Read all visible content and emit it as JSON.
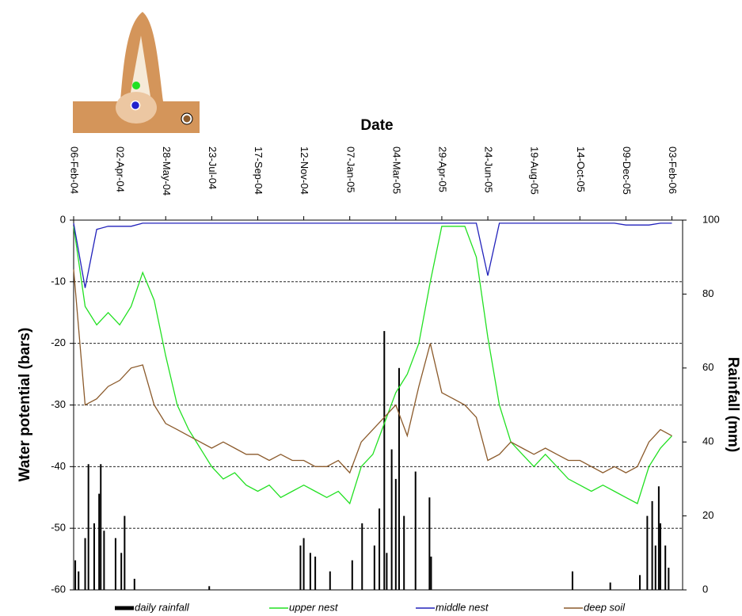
{
  "chart_data": {
    "type": "line",
    "x_title": "Date",
    "y_title": "Water potential (bars)",
    "y2_title": "Rainfall (mm)",
    "xlim": [
      "2004-02-06",
      "2006-02-16"
    ],
    "xticks": [
      {
        "value": "2004-02-06",
        "label": "06-Feb-04"
      },
      {
        "value": "2004-04-02",
        "label": "02-Apr-04"
      },
      {
        "value": "2004-05-28",
        "label": "28-May-04"
      },
      {
        "value": "2004-07-23",
        "label": "23-Jul-04"
      },
      {
        "value": "2004-09-17",
        "label": "17-Sep-04"
      },
      {
        "value": "2004-11-12",
        "label": "12-Nov-04"
      },
      {
        "value": "2005-01-07",
        "label": "07-Jan-05"
      },
      {
        "value": "2005-03-04",
        "label": "04-Mar-05"
      },
      {
        "value": "2005-04-29",
        "label": "29-Apr-05"
      },
      {
        "value": "2005-06-24",
        "label": "24-Jun-05"
      },
      {
        "value": "2005-08-19",
        "label": "19-Aug-05"
      },
      {
        "value": "2005-10-14",
        "label": "14-Oct-05"
      },
      {
        "value": "2005-12-09",
        "label": "09-Dec-05"
      },
      {
        "value": "2006-02-03",
        "label": "03-Feb-06"
      }
    ],
    "ylim": [
      -60,
      0
    ],
    "yticks": [
      0,
      -10,
      -20,
      -30,
      -40,
      -50,
      -60
    ],
    "y2lim": [
      0,
      100
    ],
    "y2ticks": [
      0,
      20,
      40,
      60,
      80,
      100
    ],
    "grid": true,
    "legend": "bottom",
    "x": [
      "2004-02-06",
      "2004-02-20",
      "2004-03-05",
      "2004-03-19",
      "2004-04-02",
      "2004-04-16",
      "2004-04-30",
      "2004-05-14",
      "2004-05-28",
      "2004-06-11",
      "2004-06-25",
      "2004-07-09",
      "2004-07-23",
      "2004-08-06",
      "2004-08-20",
      "2004-09-03",
      "2004-09-17",
      "2004-10-01",
      "2004-10-15",
      "2004-10-29",
      "2004-11-12",
      "2004-11-26",
      "2004-12-10",
      "2004-12-24",
      "2005-01-07",
      "2005-01-21",
      "2005-02-04",
      "2005-02-18",
      "2005-03-04",
      "2005-03-18",
      "2005-04-01",
      "2005-04-15",
      "2005-04-29",
      "2005-05-13",
      "2005-05-27",
      "2005-06-10",
      "2005-06-24",
      "2005-07-08",
      "2005-07-22",
      "2005-08-05",
      "2005-08-19",
      "2005-09-02",
      "2005-09-16",
      "2005-09-30",
      "2005-10-14",
      "2005-10-28",
      "2005-11-11",
      "2005-11-25",
      "2005-12-09",
      "2005-12-23",
      "2006-01-06",
      "2006-01-20",
      "2006-02-03"
    ],
    "series": [
      {
        "name": "daily rainfall",
        "type": "bar",
        "axis": "y2",
        "color": "#000000",
        "x": [
          "2004-02-08",
          "2004-02-12",
          "2004-02-20",
          "2004-02-24",
          "2004-03-02",
          "2004-03-08",
          "2004-03-10",
          "2004-03-14",
          "2004-03-28",
          "2004-04-04",
          "2004-04-08",
          "2004-04-20",
          "2004-07-20",
          "2004-11-08",
          "2004-11-12",
          "2004-11-20",
          "2004-11-26",
          "2004-12-14",
          "2005-01-10",
          "2005-01-22",
          "2005-02-06",
          "2005-02-12",
          "2005-02-18",
          "2005-02-21",
          "2005-02-27",
          "2005-03-04",
          "2005-03-08",
          "2005-03-14",
          "2005-03-28",
          "2005-04-14",
          "2005-04-16",
          "2005-10-05",
          "2005-11-20",
          "2005-12-26",
          "2006-01-04",
          "2006-01-10",
          "2006-01-14",
          "2006-01-18",
          "2006-01-20",
          "2006-01-26",
          "2006-01-30"
        ],
        "values": [
          8,
          5,
          14,
          34,
          18,
          26,
          34,
          16,
          14,
          10,
          20,
          3,
          1,
          12,
          14,
          10,
          9,
          5,
          8,
          18,
          12,
          22,
          70,
          10,
          38,
          30,
          60,
          20,
          32,
          25,
          9,
          5,
          2,
          4,
          20,
          24,
          12,
          28,
          18,
          12,
          6
        ]
      },
      {
        "name": "upper nest",
        "color": "#22e022",
        "values": [
          -1,
          -14,
          -17,
          -15,
          -17,
          -14,
          -8.5,
          -13,
          -22,
          -30,
          -34,
          -37,
          -40,
          -42,
          -41,
          -43,
          -44,
          -43,
          -45,
          -44,
          -43,
          -44,
          -45,
          -44,
          -46,
          -40,
          -38,
          -33,
          -28,
          -25,
          -20,
          -10,
          -1,
          -1,
          -1,
          -6,
          -19,
          -30,
          -36,
          -38,
          -40,
          -38,
          -40,
          -42,
          -43,
          -44,
          -43,
          -44,
          -45,
          -46,
          -40,
          -37,
          -35
        ]
      },
      {
        "name": "middle nest",
        "color": "#2222bb",
        "values": [
          -0.5,
          -11,
          -1.5,
          -1,
          -1,
          -1,
          -0.5,
          -0.5,
          -0.5,
          -0.5,
          -0.5,
          -0.5,
          -0.5,
          -0.5,
          -0.5,
          -0.5,
          -0.5,
          -0.5,
          -0.5,
          -0.5,
          -0.5,
          -0.5,
          -0.5,
          -0.5,
          -0.5,
          -0.5,
          -0.5,
          -0.5,
          -0.5,
          -0.5,
          -0.5,
          -0.5,
          -0.5,
          -0.5,
          -0.5,
          -0.5,
          -9,
          -0.5,
          -0.5,
          -0.5,
          -0.5,
          -0.5,
          -0.5,
          -0.5,
          -0.5,
          -0.5,
          -0.5,
          -0.5,
          -0.8,
          -0.8,
          -0.8,
          -0.5,
          -0.5
        ]
      },
      {
        "name": "deep soil",
        "color": "#8b5a2b",
        "values": [
          -8,
          -30,
          -29,
          -27,
          -26,
          -24,
          -23.5,
          -30,
          -33,
          -34,
          -35,
          -36,
          -37,
          -36,
          -37,
          -38,
          -38,
          -39,
          -38,
          -39,
          -39,
          -40,
          -40,
          -39,
          -41,
          -36,
          -34,
          -32,
          -30,
          -35,
          -27,
          -20,
          -28,
          -29,
          -30,
          -32,
          -39,
          -38,
          -36,
          -37,
          -38,
          -37,
          -38,
          -39,
          -39,
          -40,
          -41,
          -40,
          -41,
          -40,
          -36,
          -34,
          -35
        ]
      }
    ]
  }
}
